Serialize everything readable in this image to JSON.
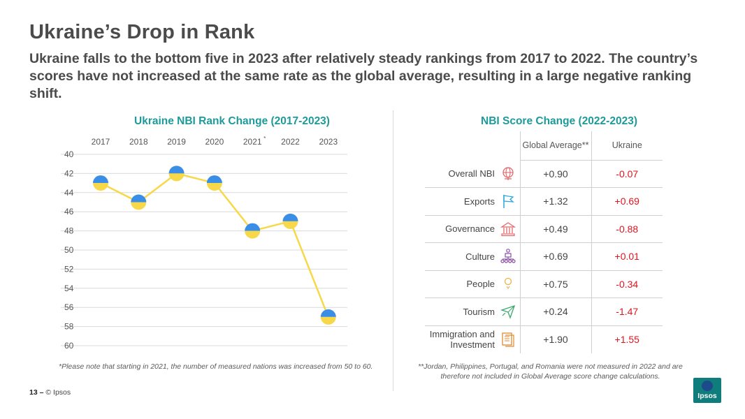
{
  "title": "Ukraine’s Drop in Rank",
  "subtitle": "Ukraine falls to the bottom five in 2023 after relatively steady rankings from 2017 to 2022. The country’s scores have not increased at the same rate as the global average, resulting in a large negative ranking shift.",
  "left_section": {
    "title": "Ukraine NBI Rank Change (2017-2023)",
    "note": "*Please note that starting in 2021, the number of measured nations was increased from 50 to 60."
  },
  "right_section": {
    "title": "NBI Score Change (2022-2023)",
    "note": "**Jordan, Philippines, Portugal, and Romania were not measured in 2022 and are therefore not included in Global Average score change calculations."
  },
  "chart_data": [
    {
      "type": "line",
      "title": "Ukraine NBI Rank Change (2017-2023)",
      "categories": [
        "2017",
        "2018",
        "2019",
        "2020",
        "2021",
        "2022",
        "2023"
      ],
      "category_marks": [
        "",
        "",
        "",
        "",
        "*",
        "",
        ""
      ],
      "series": [
        {
          "name": "Ukraine",
          "values": [
            43,
            45,
            42,
            43,
            48,
            47,
            57
          ]
        }
      ],
      "ylim": [
        40,
        60
      ],
      "y_inverted": true,
      "yticks": [
        40,
        42,
        44,
        46,
        48,
        50,
        52,
        54,
        56,
        58,
        60
      ],
      "xaxis_position": "top",
      "grid": true,
      "colors": {
        "line": "#f7d849",
        "marker_top": "#3a8ee6",
        "marker_bottom": "#f7d849",
        "grid": "#d9d9d9"
      }
    },
    {
      "type": "table",
      "title": "NBI Score Change (2022-2023)",
      "columns": [
        "Global Average**",
        "Ukraine"
      ],
      "rows": [
        {
          "label": "Overall NBI",
          "icon": "globe-icon",
          "global": "+0.90",
          "ukraine": "-0.07"
        },
        {
          "label": "Exports",
          "icon": "flag-icon",
          "global": "+1.32",
          "ukraine": "+0.69"
        },
        {
          "label": "Governance",
          "icon": "government-building-icon",
          "global": "+0.49",
          "ukraine": "-0.88"
        },
        {
          "label": "Culture",
          "icon": "culture-network-icon",
          "global": "+0.69",
          "ukraine": "+0.01"
        },
        {
          "label": "People",
          "icon": "person-icon",
          "global": "+0.75",
          "ukraine": "-0.34"
        },
        {
          "label": "Tourism",
          "icon": "airplane-icon",
          "global": "+0.24",
          "ukraine": "-1.47"
        },
        {
          "label": "Immigration and Investment",
          "icon": "documents-icon",
          "global": "+1.90",
          "ukraine": "+1.55"
        }
      ]
    }
  ],
  "footer": {
    "page": "13",
    "separator": "–",
    "copyright": "© Ipsos"
  },
  "logo": {
    "text": "Ipsos",
    "color": "#0f7d7b"
  }
}
